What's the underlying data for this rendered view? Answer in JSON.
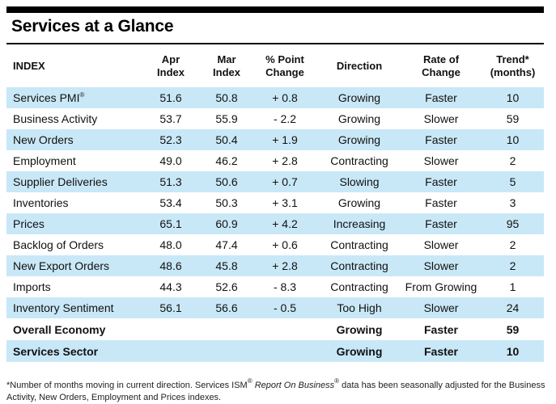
{
  "title": "Services at a Glance",
  "headers": {
    "index": "INDEX",
    "apr": [
      "Apr",
      "Index"
    ],
    "mar": [
      "Mar",
      "Index"
    ],
    "change": [
      "% Point",
      "Change"
    ],
    "direction": "Direction",
    "rate": [
      "Rate of",
      "Change"
    ],
    "trend": [
      "Trend*",
      "(months)"
    ]
  },
  "rows": [
    {
      "name": "Services PMI",
      "sup": "®",
      "apr": "51.6",
      "mar": "50.8",
      "change": "+ 0.8",
      "direction": "Growing",
      "rate": "Faster",
      "trend": "10"
    },
    {
      "name": "Business Activity",
      "sup": "",
      "apr": "53.7",
      "mar": "55.9",
      "change": "- 2.2",
      "direction": "Growing",
      "rate": "Slower",
      "trend": "59"
    },
    {
      "name": "New Orders",
      "sup": "",
      "apr": "52.3",
      "mar": "50.4",
      "change": "+ 1.9",
      "direction": "Growing",
      "rate": "Faster",
      "trend": "10"
    },
    {
      "name": "Employment",
      "sup": "",
      "apr": "49.0",
      "mar": "46.2",
      "change": "+ 2.8",
      "direction": "Contracting",
      "rate": "Slower",
      "trend": "2"
    },
    {
      "name": "Supplier Deliveries",
      "sup": "",
      "apr": "51.3",
      "mar": "50.6",
      "change": "+ 0.7",
      "direction": "Slowing",
      "rate": "Faster",
      "trend": "5"
    },
    {
      "name": "Inventories",
      "sup": "",
      "apr": "53.4",
      "mar": "50.3",
      "change": "+ 3.1",
      "direction": "Growing",
      "rate": "Faster",
      "trend": "3"
    },
    {
      "name": "Prices",
      "sup": "",
      "apr": "65.1",
      "mar": "60.9",
      "change": "+ 4.2",
      "direction": "Increasing",
      "rate": "Faster",
      "trend": "95"
    },
    {
      "name": "Backlog of Orders",
      "sup": "",
      "apr": "48.0",
      "mar": "47.4",
      "change": "+ 0.6",
      "direction": "Contracting",
      "rate": "Slower",
      "trend": "2"
    },
    {
      "name": "New Export Orders",
      "sup": "",
      "apr": "48.6",
      "mar": "45.8",
      "change": "+ 2.8",
      "direction": "Contracting",
      "rate": "Slower",
      "trend": "2"
    },
    {
      "name": "Imports",
      "sup": "",
      "apr": "44.3",
      "mar": "52.6",
      "change": "- 8.3",
      "direction": "Contracting",
      "rate": "From Growing",
      "trend": "1"
    },
    {
      "name": "Inventory Sentiment",
      "sup": "",
      "apr": "56.1",
      "mar": "56.6",
      "change": "- 0.5",
      "direction": "Too High",
      "rate": "Slower",
      "trend": "24"
    }
  ],
  "summary": [
    {
      "name": "Overall Economy",
      "direction": "Growing",
      "rate": "Faster",
      "trend": "59"
    },
    {
      "name": "Services Sector",
      "direction": "Growing",
      "rate": "Faster",
      "trend": "10"
    }
  ],
  "footnote": {
    "part1": "*Number of months moving in current direction. Services ISM",
    "sup": "®",
    "part2": " ",
    "italic": "Report On Business",
    "sup2": "®",
    "part3": " data has been seasonally adjusted for the Business Activity, New Orders, Employment and Prices indexes."
  },
  "colors": {
    "shade": "#c9e8f7",
    "rule": "#000000"
  }
}
